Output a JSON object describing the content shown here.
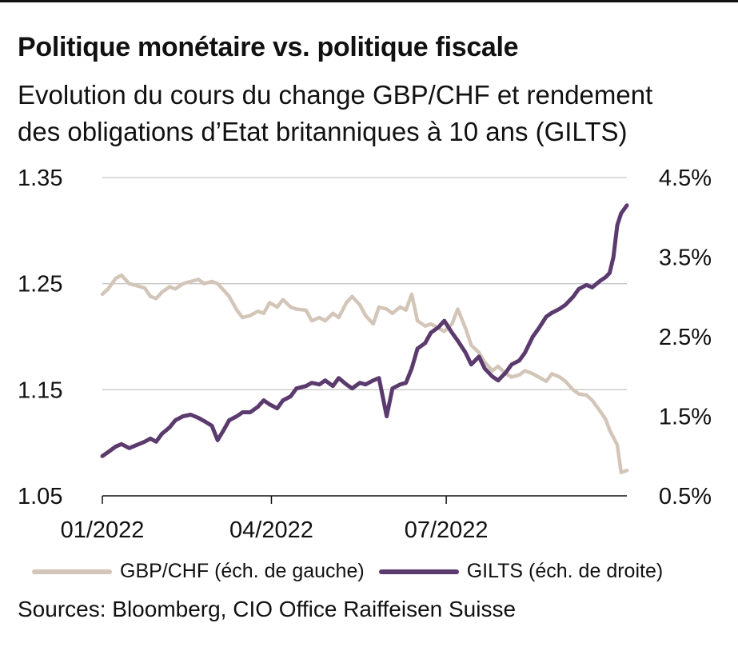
{
  "header": {
    "title": "Politique monétaire vs. politique fiscale",
    "subtitle_line1": "Evolution du cours du change GBP/CHF et rendement",
    "subtitle_line2": "des obligations d’Etat britanniques à 10 ans (GILTS)"
  },
  "footer": {
    "sources": "Sources: Bloomberg, CIO Office Raiffeisen Suisse"
  },
  "colors": {
    "gbpchf": "#d3c6b8",
    "gilts": "#5b3a6e",
    "grid": "#c8c8c8",
    "axis": "#111111"
  },
  "chart_data": {
    "type": "line",
    "x_start": "2022-01-03",
    "x_end": "2022-10-03",
    "x_ticks": [
      {
        "date": "2022-01-03",
        "label": "01/2022"
      },
      {
        "date": "2022-04-01",
        "label": "04/2022"
      },
      {
        "date": "2022-07-01",
        "label": "07/2022"
      }
    ],
    "y_left": {
      "min": 1.05,
      "max": 1.35,
      "ticks": [
        1.05,
        1.15,
        1.25,
        1.35
      ],
      "tick_labels": [
        "1.05",
        "1.15",
        "1.25",
        "1.35"
      ]
    },
    "y_right": {
      "min": 0.5,
      "max": 4.5,
      "ticks": [
        0.5,
        1.5,
        2.5,
        3.5,
        4.5
      ],
      "tick_labels": [
        "0.5%",
        "1.5%",
        "2.5%",
        "3.5%",
        "4.5%"
      ]
    },
    "grid": true,
    "legend_position": "bottom",
    "series": [
      {
        "name": "GBP/CHF (éch. de gauche)",
        "axis": "left",
        "points": [
          [
            "2022-01-03",
            1.24
          ],
          [
            "2022-01-06",
            1.245
          ],
          [
            "2022-01-10",
            1.255
          ],
          [
            "2022-01-13",
            1.258
          ],
          [
            "2022-01-17",
            1.25
          ],
          [
            "2022-01-21",
            1.248
          ],
          [
            "2022-01-25",
            1.246
          ],
          [
            "2022-01-28",
            1.238
          ],
          [
            "2022-01-31",
            1.236
          ],
          [
            "2022-02-03",
            1.242
          ],
          [
            "2022-02-07",
            1.247
          ],
          [
            "2022-02-10",
            1.245
          ],
          [
            "2022-02-14",
            1.25
          ],
          [
            "2022-02-18",
            1.252
          ],
          [
            "2022-02-22",
            1.254
          ],
          [
            "2022-02-25",
            1.25
          ],
          [
            "2022-03-01",
            1.252
          ],
          [
            "2022-03-04",
            1.25
          ],
          [
            "2022-03-07",
            1.244
          ],
          [
            "2022-03-10",
            1.238
          ],
          [
            "2022-03-14",
            1.225
          ],
          [
            "2022-03-17",
            1.218
          ],
          [
            "2022-03-21",
            1.22
          ],
          [
            "2022-03-25",
            1.224
          ],
          [
            "2022-03-28",
            1.222
          ],
          [
            "2022-03-31",
            1.232
          ],
          [
            "2022-04-04",
            1.228
          ],
          [
            "2022-04-07",
            1.235
          ],
          [
            "2022-04-11",
            1.228
          ],
          [
            "2022-04-14",
            1.226
          ],
          [
            "2022-04-19",
            1.225
          ],
          [
            "2022-04-22",
            1.215
          ],
          [
            "2022-04-26",
            1.218
          ],
          [
            "2022-04-29",
            1.215
          ],
          [
            "2022-05-03",
            1.222
          ],
          [
            "2022-05-06",
            1.218
          ],
          [
            "2022-05-10",
            1.232
          ],
          [
            "2022-05-13",
            1.238
          ],
          [
            "2022-05-17",
            1.23
          ],
          [
            "2022-05-20",
            1.22
          ],
          [
            "2022-05-24",
            1.212
          ],
          [
            "2022-05-27",
            1.228
          ],
          [
            "2022-05-31",
            1.226
          ],
          [
            "2022-06-03",
            1.222
          ],
          [
            "2022-06-07",
            1.228
          ],
          [
            "2022-06-10",
            1.225
          ],
          [
            "2022-06-13",
            1.24
          ],
          [
            "2022-06-16",
            1.215
          ],
          [
            "2022-06-20",
            1.21
          ],
          [
            "2022-06-23",
            1.212
          ],
          [
            "2022-06-27",
            1.208
          ],
          [
            "2022-06-30",
            1.205
          ],
          [
            "2022-07-04",
            1.212
          ],
          [
            "2022-07-07",
            1.226
          ],
          [
            "2022-07-11",
            1.208
          ],
          [
            "2022-07-14",
            1.192
          ],
          [
            "2022-07-18",
            1.185
          ],
          [
            "2022-07-21",
            1.176
          ],
          [
            "2022-07-25",
            1.168
          ],
          [
            "2022-07-28",
            1.172
          ],
          [
            "2022-08-01",
            1.165
          ],
          [
            "2022-08-04",
            1.162
          ],
          [
            "2022-08-08",
            1.164
          ],
          [
            "2022-08-11",
            1.168
          ],
          [
            "2022-08-15",
            1.165
          ],
          [
            "2022-08-18",
            1.162
          ],
          [
            "2022-08-22",
            1.158
          ],
          [
            "2022-08-25",
            1.165
          ],
          [
            "2022-08-29",
            1.162
          ],
          [
            "2022-09-01",
            1.158
          ],
          [
            "2022-09-05",
            1.15
          ],
          [
            "2022-09-08",
            1.146
          ],
          [
            "2022-09-12",
            1.145
          ],
          [
            "2022-09-15",
            1.14
          ],
          [
            "2022-09-19",
            1.13
          ],
          [
            "2022-09-22",
            1.122
          ],
          [
            "2022-09-24",
            1.112
          ],
          [
            "2022-09-26",
            1.105
          ],
          [
            "2022-09-28",
            1.098
          ],
          [
            "2022-09-30",
            1.072
          ],
          [
            "2022-10-03",
            1.074
          ]
        ]
      },
      {
        "name": "GILTS (éch. de droite)",
        "axis": "right",
        "points": [
          [
            "2022-01-03",
            1.0
          ],
          [
            "2022-01-06",
            1.05
          ],
          [
            "2022-01-10",
            1.12
          ],
          [
            "2022-01-13",
            1.15
          ],
          [
            "2022-01-17",
            1.1
          ],
          [
            "2022-01-21",
            1.14
          ],
          [
            "2022-01-25",
            1.18
          ],
          [
            "2022-01-28",
            1.22
          ],
          [
            "2022-01-31",
            1.18
          ],
          [
            "2022-02-03",
            1.28
          ],
          [
            "2022-02-07",
            1.36
          ],
          [
            "2022-02-10",
            1.45
          ],
          [
            "2022-02-14",
            1.5
          ],
          [
            "2022-02-18",
            1.52
          ],
          [
            "2022-02-22",
            1.48
          ],
          [
            "2022-02-25",
            1.44
          ],
          [
            "2022-03-01",
            1.38
          ],
          [
            "2022-03-04",
            1.2
          ],
          [
            "2022-03-07",
            1.32
          ],
          [
            "2022-03-10",
            1.45
          ],
          [
            "2022-03-14",
            1.5
          ],
          [
            "2022-03-17",
            1.55
          ],
          [
            "2022-03-21",
            1.55
          ],
          [
            "2022-03-25",
            1.62
          ],
          [
            "2022-03-28",
            1.7
          ],
          [
            "2022-03-31",
            1.65
          ],
          [
            "2022-04-04",
            1.6
          ],
          [
            "2022-04-07",
            1.7
          ],
          [
            "2022-04-11",
            1.75
          ],
          [
            "2022-04-14",
            1.85
          ],
          [
            "2022-04-19",
            1.88
          ],
          [
            "2022-04-22",
            1.92
          ],
          [
            "2022-04-26",
            1.9
          ],
          [
            "2022-04-29",
            1.95
          ],
          [
            "2022-05-03",
            1.88
          ],
          [
            "2022-05-06",
            1.98
          ],
          [
            "2022-05-10",
            1.9
          ],
          [
            "2022-05-13",
            1.85
          ],
          [
            "2022-05-17",
            1.92
          ],
          [
            "2022-05-20",
            1.9
          ],
          [
            "2022-05-24",
            1.95
          ],
          [
            "2022-05-27",
            1.98
          ],
          [
            "2022-05-31",
            1.5
          ],
          [
            "2022-06-03",
            1.85
          ],
          [
            "2022-06-07",
            1.9
          ],
          [
            "2022-06-10",
            1.92
          ],
          [
            "2022-06-13",
            2.1
          ],
          [
            "2022-06-16",
            2.35
          ],
          [
            "2022-06-20",
            2.42
          ],
          [
            "2022-06-23",
            2.55
          ],
          [
            "2022-06-27",
            2.62
          ],
          [
            "2022-06-30",
            2.7
          ],
          [
            "2022-07-04",
            2.55
          ],
          [
            "2022-07-07",
            2.45
          ],
          [
            "2022-07-11",
            2.3
          ],
          [
            "2022-07-14",
            2.15
          ],
          [
            "2022-07-18",
            2.25
          ],
          [
            "2022-07-21",
            2.1
          ],
          [
            "2022-07-25",
            2.0
          ],
          [
            "2022-07-28",
            1.95
          ],
          [
            "2022-08-01",
            2.05
          ],
          [
            "2022-08-04",
            2.15
          ],
          [
            "2022-08-08",
            2.2
          ],
          [
            "2022-08-11",
            2.3
          ],
          [
            "2022-08-15",
            2.5
          ],
          [
            "2022-08-18",
            2.6
          ],
          [
            "2022-08-22",
            2.75
          ],
          [
            "2022-08-25",
            2.8
          ],
          [
            "2022-08-29",
            2.85
          ],
          [
            "2022-09-01",
            2.9
          ],
          [
            "2022-09-05",
            3.0
          ],
          [
            "2022-09-08",
            3.1
          ],
          [
            "2022-09-12",
            3.15
          ],
          [
            "2022-09-15",
            3.12
          ],
          [
            "2022-09-19",
            3.2
          ],
          [
            "2022-09-22",
            3.25
          ],
          [
            "2022-09-24",
            3.3
          ],
          [
            "2022-09-26",
            3.5
          ],
          [
            "2022-09-28",
            3.9
          ],
          [
            "2022-09-30",
            4.05
          ],
          [
            "2022-10-03",
            4.15
          ]
        ]
      }
    ]
  }
}
